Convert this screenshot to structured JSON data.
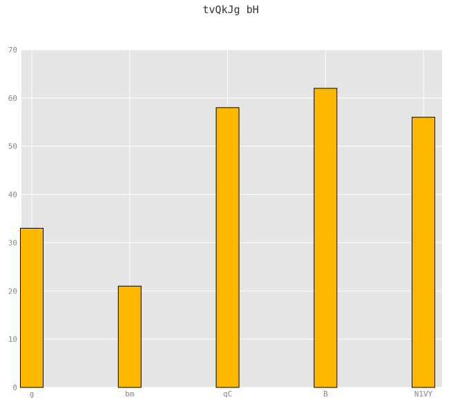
{
  "chart_data": {
    "type": "bar",
    "title": "tvQkJg bH",
    "xlabel": "",
    "ylabel": "",
    "categories": [
      "g",
      "bm",
      "qC",
      "B",
      "N1VY"
    ],
    "values": [
      33,
      21,
      58,
      62,
      56
    ],
    "ylim": [
      0,
      70
    ],
    "yticks": [
      0,
      10,
      20,
      30,
      40,
      50,
      60,
      70
    ],
    "grid": true,
    "colors": {
      "bar_fill": "#FFB800",
      "bar_edge": "#000000",
      "plot_background": "#E5E5E5",
      "grid": "#FFFFFF"
    }
  }
}
